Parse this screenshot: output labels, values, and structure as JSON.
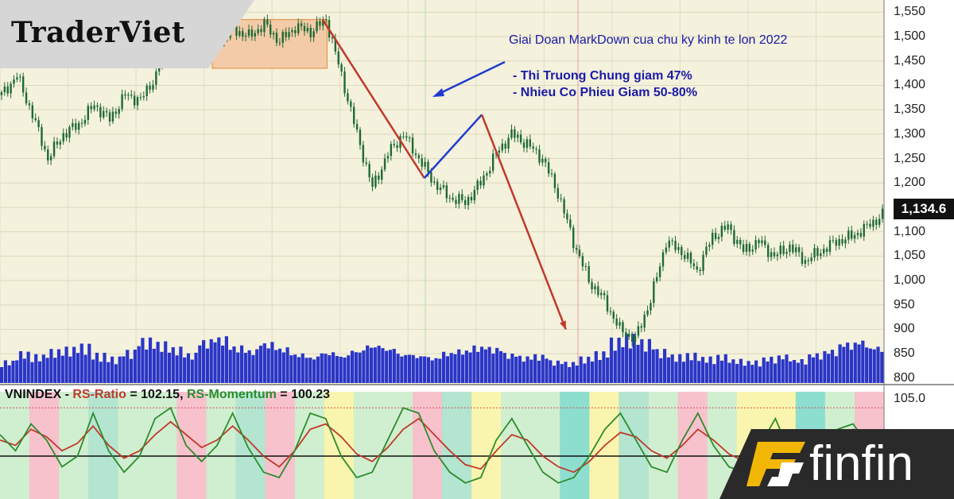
{
  "branding": {
    "top_left_logo": "TraderViet",
    "bottom_right_logo": "finfin"
  },
  "annotations": {
    "title": "Giai Doan MarkDown cua chu ky kinh te lon 2022",
    "bullet_1": "- Thi Truong Chung giam 47%",
    "bullet_2": "- Nhieu Co Phieu Giam 50-80%"
  },
  "price_badge": "1,134.6",
  "rs_panel": {
    "symbol": "VNINDEX",
    "ratio_label": "RS-Ratio",
    "ratio_value": "102.15",
    "momentum_label": "RS-Momentum",
    "momentum_value": "100.23",
    "ytick": "105.0"
  },
  "colors": {
    "background": "#f4f1dc",
    "candle": "#1f6a35",
    "volume": "#2a35c8",
    "trend_red": "#c0392b",
    "trend_blue": "#1f3bd0",
    "rs_ratio": "#c0392b",
    "rs_momentum": "#2e8b2e"
  },
  "chart_data": {
    "type": "line",
    "series": [
      {
        "name": "VNINDEX",
        "values": [
          1380,
          1420,
          1340,
          1250,
          1300,
          1320,
          1360,
          1330,
          1380,
          1370,
          1420,
          1520,
          1500,
          1510,
          1490,
          1515,
          1500,
          1525,
          1490,
          1520,
          1510,
          1535,
          1420,
          1300,
          1190,
          1260,
          1300,
          1250,
          1200,
          1170,
          1160,
          1200,
          1260,
          1300,
          1280,
          1250,
          1180,
          1080,
          1000,
          960,
          900,
          880,
          960,
          1080,
          1060,
          1020,
          1090,
          1110,
          1060,
          1080,
          1050,
          1070,
          1040,
          1060,
          1080,
          1090,
          1110,
          1134.6
        ]
      }
    ],
    "ylim": [
      790,
      1575
    ],
    "y_ticks": [
      "1,550",
      "1,500",
      "1,450",
      "1,400",
      "1,350",
      "1,300",
      "1,250",
      "1,200",
      "1,150",
      "1,100",
      "1,050",
      "1,000",
      "950",
      "900",
      "850",
      "800"
    ],
    "markdown_path": [
      {
        "x": 0.365,
        "y": 1535
      },
      {
        "x": 0.48,
        "y": 1210
      },
      {
        "x": 0.545,
        "y": 1340
      },
      {
        "x": 0.64,
        "y": 900
      }
    ],
    "distribution_zone": {
      "x_start": 0.24,
      "x_end": 0.37,
      "y_low": 1435,
      "y_high": 1535
    },
    "volume": [
      30,
      42,
      38,
      45,
      48,
      52,
      40,
      35,
      44,
      60,
      55,
      48,
      40,
      58,
      62,
      50,
      45,
      55,
      48,
      40,
      36,
      42,
      38,
      45,
      52,
      48,
      40,
      38,
      35,
      42,
      45,
      50,
      48,
      40,
      36,
      38,
      30,
      28,
      35,
      42,
      60,
      65,
      58,
      45,
      38,
      40,
      35,
      38,
      32,
      30,
      35,
      38,
      32,
      40,
      45,
      55,
      58,
      50
    ],
    "rs_ratio": [
      101.5,
      101.0,
      102.5,
      101.8,
      100.5,
      101.2,
      102.8,
      101.0,
      99.8,
      100.5,
      102.0,
      103.2,
      102.0,
      100.8,
      101.5,
      102.8,
      101.5,
      100.0,
      99.0,
      100.5,
      102.5,
      103.0,
      101.8,
      100.2,
      99.5,
      100.8,
      102.5,
      103.5,
      102.0,
      100.5,
      99.2,
      98.8,
      100.5,
      102.0,
      101.5,
      100.0,
      99.0,
      98.5,
      99.5,
      101.0,
      102.2,
      101.8,
      100.5,
      99.8,
      101.0,
      102.5,
      101.5,
      100.2,
      99.5,
      100.8,
      102.2,
      101.0,
      100.0,
      100.8,
      101.8,
      102.5,
      102.2,
      102.15
    ],
    "rs_momentum": [
      102.0,
      100.5,
      103.0,
      101.5,
      99.0,
      100.0,
      104.0,
      100.5,
      98.5,
      100.0,
      103.5,
      104.5,
      101.0,
      99.5,
      101.0,
      104.0,
      100.8,
      98.5,
      98.0,
      100.5,
      104.0,
      103.5,
      100.0,
      98.0,
      98.5,
      101.5,
      104.5,
      104.0,
      100.5,
      98.5,
      97.5,
      98.0,
      101.5,
      103.5,
      101.0,
      98.5,
      97.5,
      98.0,
      100.0,
      102.5,
      104.0,
      101.5,
      99.0,
      98.5,
      101.5,
      104.0,
      101.0,
      99.0,
      98.5,
      101.0,
      103.5,
      100.0,
      99.0,
      100.5,
      102.5,
      103.0,
      101.0,
      100.23
    ],
    "rs_ylim": [
      96,
      106
    ]
  }
}
